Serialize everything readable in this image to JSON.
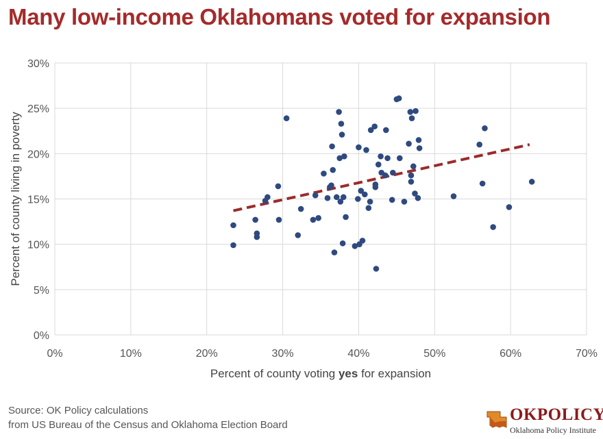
{
  "title": "Many low-income Oklahomans voted for expansion",
  "source": {
    "line1": "Source: OK Policy calculations",
    "line2": "from US Bureau of the Census and Oklahoma Election Board"
  },
  "logo": {
    "text": "OKPOLICY",
    "subtitle": "Oklahoma Policy Institute"
  },
  "colors": {
    "title": "#a52a2a",
    "points": "#2e4a7f",
    "trendline": "#9b2b2b",
    "grid": "#d9d9d9"
  },
  "chart_data": {
    "type": "scatter",
    "title": "Many low-income Oklahomans voted for expansion",
    "xlabel_parts": [
      "Percent of county voting ",
      "yes",
      " for expansion"
    ],
    "ylabel": "Percent of county living in poverty",
    "xlim": [
      0,
      70
    ],
    "ylim": [
      0,
      30
    ],
    "x_ticks": [
      0,
      10,
      20,
      30,
      40,
      50,
      60,
      70
    ],
    "x_tick_labels": [
      "0%",
      "10%",
      "20%",
      "30%",
      "40%",
      "50%",
      "60%",
      "70%"
    ],
    "y_ticks": [
      0,
      5,
      10,
      15,
      20,
      25,
      30
    ],
    "y_tick_labels": [
      "0%",
      "5%",
      "10%",
      "15%",
      "20%",
      "25%",
      "30%"
    ],
    "grid": true,
    "legend": "none",
    "points": [
      [
        23.5,
        12.1
      ],
      [
        23.5,
        9.9
      ],
      [
        26.4,
        12.7
      ],
      [
        26.6,
        10.8
      ],
      [
        26.6,
        11.2
      ],
      [
        27.7,
        14.8
      ],
      [
        28.0,
        15.2
      ],
      [
        29.4,
        16.4
      ],
      [
        29.5,
        12.7
      ],
      [
        30.5,
        23.9
      ],
      [
        32.0,
        11.0
      ],
      [
        32.4,
        13.9
      ],
      [
        34.0,
        12.7
      ],
      [
        34.3,
        15.4
      ],
      [
        34.7,
        12.9
      ],
      [
        35.4,
        17.8
      ],
      [
        35.9,
        15.1
      ],
      [
        36.2,
        16.3
      ],
      [
        36.4,
        16.5
      ],
      [
        36.5,
        20.8
      ],
      [
        36.6,
        18.2
      ],
      [
        36.8,
        9.1
      ],
      [
        37.1,
        15.2
      ],
      [
        37.4,
        24.6
      ],
      [
        37.5,
        19.5
      ],
      [
        37.6,
        14.7
      ],
      [
        37.7,
        23.3
      ],
      [
        37.8,
        22.1
      ],
      [
        37.9,
        10.1
      ],
      [
        38.0,
        15.2
      ],
      [
        38.1,
        19.7
      ],
      [
        38.3,
        13.0
      ],
      [
        39.5,
        9.8
      ],
      [
        39.9,
        15.0
      ],
      [
        40.0,
        20.7
      ],
      [
        40.1,
        10.0
      ],
      [
        40.3,
        15.9
      ],
      [
        40.5,
        10.4
      ],
      [
        40.8,
        15.5
      ],
      [
        41.0,
        20.4
      ],
      [
        41.3,
        14.0
      ],
      [
        41.5,
        14.7
      ],
      [
        41.6,
        22.6
      ],
      [
        42.1,
        23.0
      ],
      [
        42.2,
        16.3
      ],
      [
        42.2,
        16.6
      ],
      [
        42.3,
        7.3
      ],
      [
        42.6,
        18.8
      ],
      [
        42.9,
        19.7
      ],
      [
        43.0,
        17.9
      ],
      [
        43.5,
        17.6
      ],
      [
        43.6,
        22.6
      ],
      [
        43.8,
        19.5
      ],
      [
        44.4,
        14.9
      ],
      [
        44.5,
        17.9
      ],
      [
        45.0,
        26.0
      ],
      [
        45.3,
        26.1
      ],
      [
        45.4,
        19.5
      ],
      [
        46.0,
        14.7
      ],
      [
        46.6,
        21.1
      ],
      [
        46.8,
        24.6
      ],
      [
        46.9,
        16.9
      ],
      [
        46.9,
        17.6
      ],
      [
        47.0,
        23.9
      ],
      [
        47.2,
        18.6
      ],
      [
        47.4,
        15.6
      ],
      [
        47.5,
        24.7
      ],
      [
        47.8,
        15.1
      ],
      [
        47.9,
        21.5
      ],
      [
        48.0,
        20.6
      ],
      [
        52.5,
        15.3
      ],
      [
        55.9,
        21.0
      ],
      [
        56.3,
        16.7
      ],
      [
        56.6,
        22.8
      ],
      [
        57.7,
        11.9
      ],
      [
        59.8,
        14.1
      ],
      [
        62.8,
        16.9
      ]
    ],
    "trendline": {
      "style": "dashed",
      "from": [
        23.5,
        13.7
      ],
      "to": [
        62.5,
        21.0
      ]
    }
  }
}
